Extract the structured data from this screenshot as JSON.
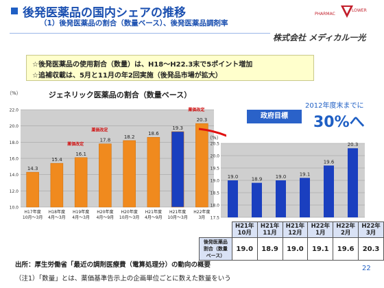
{
  "header": {
    "title": "後発医薬品の国内シェアの推移",
    "subtitle": "（1）後発医薬品の割合（数量ベース）、後発医薬品調剤率",
    "company": "株式会社 メディカル一光",
    "logo_text": "PHARMACY FLOWER"
  },
  "notes": [
    "☆後発医薬品の使用割合（数量）は、H18～H22.3末で5ポイント増加",
    "☆追補収載は、5月と11月の年2回実施（後発品市場が拡大）"
  ],
  "colors": {
    "accent": "#1f5fc4",
    "bar_orange": "#f08a1e",
    "bar_blue": "#1a3fbf",
    "bg_chart": "#cccccc",
    "note_bg": "#ffffcc"
  },
  "chart_data": [
    {
      "type": "bar",
      "title": "ジェネリック医薬品の割合（数量ベース）",
      "ylabel": "（%）",
      "ylim": [
        10.0,
        22.0
      ],
      "yticks": [
        "22.0",
        "20.0",
        "18.0",
        "16.0",
        "14.0",
        "12.0",
        "10.0"
      ],
      "categories": [
        "H17年度\n10月～3月",
        "H18年度\n4月～3月",
        "H19年度\n4月～3月",
        "H20年度\n4月～9月",
        "H20年度\n10月～3月",
        "H21年度\n4月～9月",
        "H21年度\n10月～3月",
        "H22年度\n3月"
      ],
      "values": [
        14.3,
        15.4,
        16.1,
        17.8,
        18.2,
        18.6,
        19.3,
        20.3
      ],
      "annotations": [
        {
          "index": 2,
          "text": "薬価改定"
        },
        {
          "index": 3,
          "text": "薬価改定"
        },
        {
          "index": 7,
          "text": "薬価改定"
        }
      ],
      "grid": true
    },
    {
      "type": "bar",
      "ylabel": "（%）",
      "ylim": [
        17.5,
        20.5
      ],
      "yticks": [
        "20.5",
        "20.0",
        "19.5",
        "19.0",
        "18.5",
        "18.0",
        "17.5"
      ],
      "categories": [
        "H21年\n10月",
        "H21年\n11月",
        "H21年\n12月",
        "H22年\n1月",
        "H22年\n2月",
        "H22年\n3月"
      ],
      "values": [
        19.0,
        18.9,
        19.0,
        19.1,
        19.6,
        20.3
      ],
      "grid": true
    }
  ],
  "goal": {
    "label": "政府目標",
    "text": "2012年度末までに",
    "value": "30%へ"
  },
  "table": {
    "row_head": "後発医薬品割合（数量ベース）",
    "columns": [
      "H21年\n10月",
      "H21年\n11月",
      "H21年\n12月",
      "H22年\n1月",
      "H22年\n2月",
      "H22年\n3月"
    ],
    "values": [
      "19.0",
      "18.9",
      "19.0",
      "19.1",
      "19.6",
      "20.3"
    ]
  },
  "footer": {
    "source": "出所：厚生労働省「最近の調剤医療費（電算処理分）の動向の概要",
    "note": "（注1）「数量」とは、薬価基準告示上の企画単位ごとに数えた数量をいう",
    "page": "22"
  }
}
